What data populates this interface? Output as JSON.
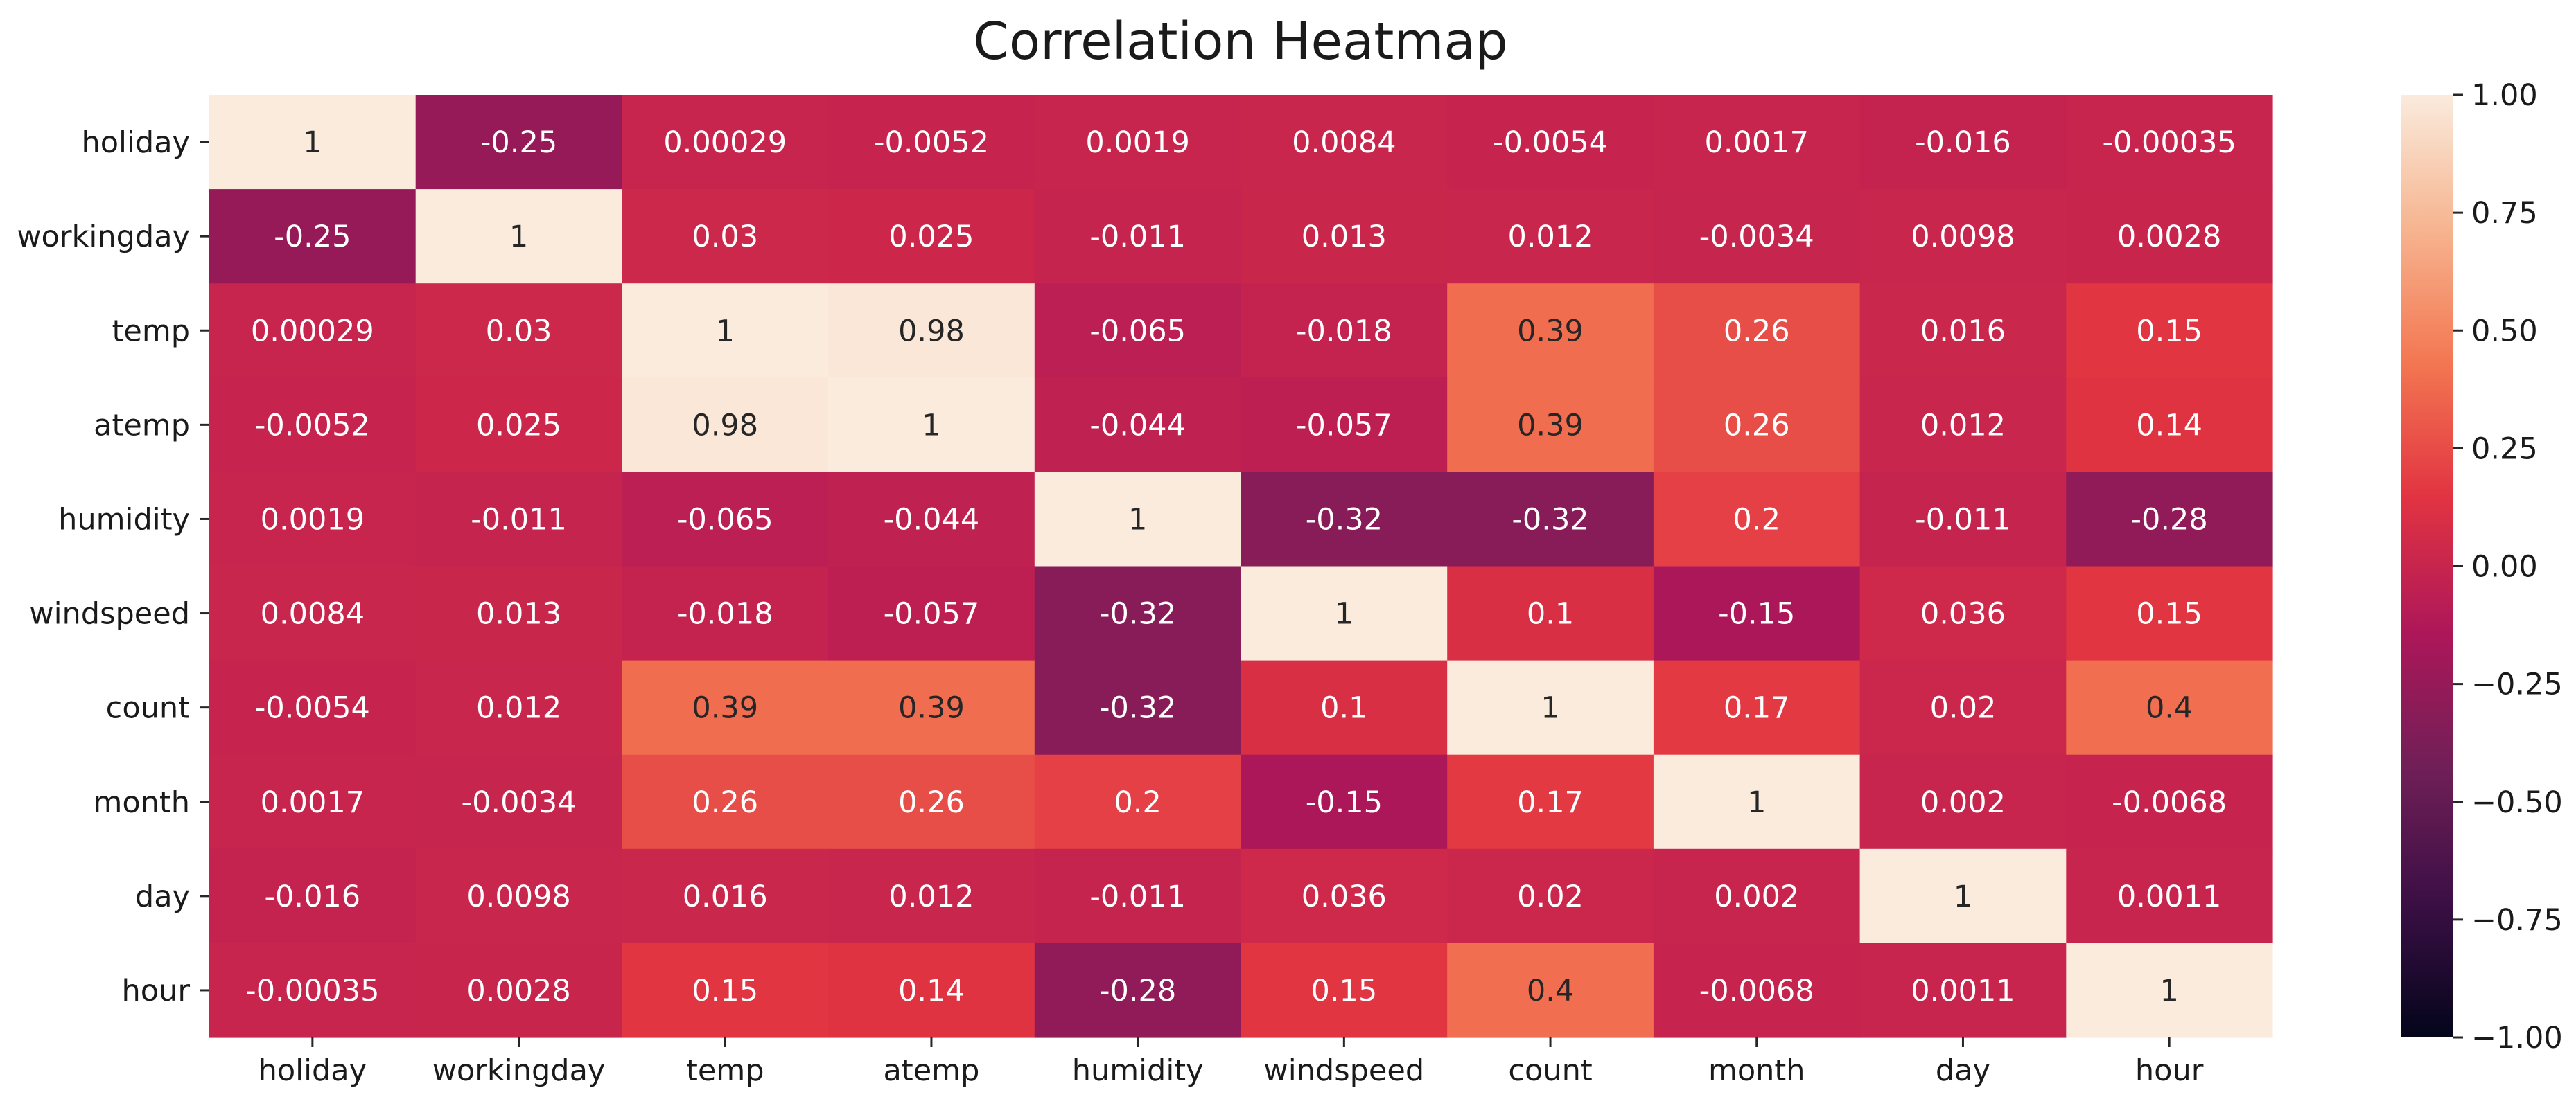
{
  "chart_data": {
    "type": "heatmap",
    "title": "Correlation Heatmap",
    "xlabel": "",
    "ylabel": "",
    "x_categories": [
      "holiday",
      "workingday",
      "temp",
      "atemp",
      "humidity",
      "windspeed",
      "count",
      "month",
      "day",
      "hour"
    ],
    "y_categories": [
      "holiday",
      "workingday",
      "temp",
      "atemp",
      "humidity",
      "windspeed",
      "count",
      "month",
      "day",
      "hour"
    ],
    "values": [
      [
        1,
        -0.25,
        0.00029,
        -0.0052,
        0.0019,
        0.0084,
        -0.0054,
        0.0017,
        -0.016,
        -0.00035
      ],
      [
        -0.25,
        1,
        0.03,
        0.025,
        -0.011,
        0.013,
        0.012,
        -0.0034,
        0.0098,
        0.0028
      ],
      [
        0.00029,
        0.03,
        1,
        0.98,
        -0.065,
        -0.018,
        0.39,
        0.26,
        0.016,
        0.15
      ],
      [
        -0.0052,
        0.025,
        0.98,
        1,
        -0.044,
        -0.057,
        0.39,
        0.26,
        0.012,
        0.14
      ],
      [
        0.0019,
        -0.011,
        -0.065,
        -0.044,
        1,
        -0.32,
        -0.32,
        0.2,
        -0.011,
        -0.28
      ],
      [
        0.0084,
        0.013,
        -0.018,
        -0.057,
        -0.32,
        1,
        0.1,
        -0.15,
        0.036,
        0.15
      ],
      [
        -0.0054,
        0.012,
        0.39,
        0.39,
        -0.32,
        0.1,
        1,
        0.17,
        0.02,
        0.4
      ],
      [
        0.0017,
        -0.0034,
        0.26,
        0.26,
        0.2,
        -0.15,
        0.17,
        1,
        0.002,
        -0.0068
      ],
      [
        -0.016,
        0.0098,
        0.016,
        0.012,
        -0.011,
        0.036,
        0.02,
        0.002,
        1,
        0.0011
      ],
      [
        -0.00035,
        0.0028,
        0.15,
        0.14,
        -0.28,
        0.15,
        0.4,
        -0.0068,
        0.0011,
        1
      ]
    ],
    "value_labels": [
      [
        "1",
        "-0.25",
        "0.00029",
        "-0.0052",
        "0.0019",
        "0.0084",
        "-0.0054",
        "0.0017",
        "-0.016",
        "-0.00035"
      ],
      [
        "-0.25",
        "1",
        "0.03",
        "0.025",
        "-0.011",
        "0.013",
        "0.012",
        "-0.0034",
        "0.0098",
        "0.0028"
      ],
      [
        "0.00029",
        "0.03",
        "1",
        "0.98",
        "-0.065",
        "-0.018",
        "0.39",
        "0.26",
        "0.016",
        "0.15"
      ],
      [
        "-0.0052",
        "0.025",
        "0.98",
        "1",
        "-0.044",
        "-0.057",
        "0.39",
        "0.26",
        "0.012",
        "0.14"
      ],
      [
        "0.0019",
        "-0.011",
        "-0.065",
        "-0.044",
        "1",
        "-0.32",
        "-0.32",
        "0.2",
        "-0.011",
        "-0.28"
      ],
      [
        "0.0084",
        "0.013",
        "-0.018",
        "-0.057",
        "-0.32",
        "1",
        "0.1",
        "-0.15",
        "0.036",
        "0.15"
      ],
      [
        "-0.0054",
        "0.012",
        "0.39",
        "0.39",
        "-0.32",
        "0.1",
        "1",
        "0.17",
        "0.02",
        "0.4"
      ],
      [
        "0.0017",
        "-0.0034",
        "0.26",
        "0.26",
        "0.2",
        "-0.15",
        "0.17",
        "1",
        "0.002",
        "-0.0068"
      ],
      [
        "-0.016",
        "0.0098",
        "0.016",
        "0.012",
        "-0.011",
        "0.036",
        "0.02",
        "0.002",
        "1",
        "0.0011"
      ],
      [
        "-0.00035",
        "0.0028",
        "0.15",
        "0.14",
        "-0.28",
        "0.15",
        "0.4",
        "-0.0068",
        "0.0011",
        "1"
      ]
    ],
    "colorbar": {
      "range": [
        -1,
        1
      ],
      "ticks": [
        1,
        0.75,
        0.5,
        0.25,
        0,
        -0.25,
        -0.5,
        -0.75,
        -1
      ],
      "tick_labels": [
        "1.00",
        "0.75",
        "0.50",
        "0.25",
        "0.00",
        "−0.25",
        "−0.50",
        "−0.75",
        "−1.00"
      ]
    },
    "colormap": {
      "name": "rocket",
      "stops": [
        "#03051a",
        "#3b0f45",
        "#701f57",
        "#ad1759",
        "#e13342",
        "#f37651",
        "#f6b48f",
        "#faebdd"
      ]
    },
    "grid": false,
    "legend": "colorbar-right"
  }
}
